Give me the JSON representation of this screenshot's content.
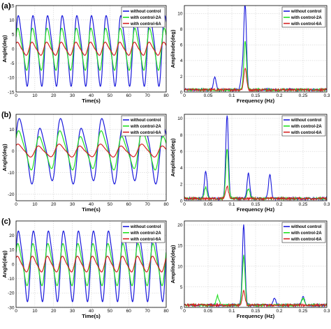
{
  "colors": {
    "without_control": "#1a1adc",
    "with_control_2A": "#22e022",
    "with_control_6A": "#d42020",
    "grid": "#c9c9c9",
    "frame": "#000000"
  },
  "rows": [
    {
      "label": "(a)",
      "time": {
        "type": "line",
        "xlabel": "Time(s)",
        "ylabel": "Angle(deg)",
        "xlim": [
          0,
          80
        ],
        "ylim": [
          -15,
          15
        ],
        "xticks": [
          0,
          10,
          20,
          30,
          40,
          50,
          60,
          70,
          80
        ],
        "yticks": [
          -15,
          -10,
          -5,
          0,
          5,
          10,
          15
        ],
        "grid": true,
        "legend_position": "top-right",
        "series": [
          {
            "name": "without control",
            "color": "#1a1adc",
            "amplitude": 13.5,
            "period_s": 7.8
          },
          {
            "name": "with control-2A",
            "color": "#22e022",
            "amplitude": 8,
            "period_s": 7.8
          },
          {
            "name": "with control-6A",
            "color": "#d42020",
            "amplitude": 2.5,
            "period_s": 7.8
          }
        ]
      },
      "freq": {
        "type": "line",
        "xlabel": "Frequency (Hz)",
        "ylabel": "Amplitude(deg)",
        "xlim": [
          0,
          0.3
        ],
        "ylim": [
          0,
          11
        ],
        "xticks": [
          0,
          0.05,
          0.1,
          0.15,
          0.2,
          0.25,
          0.3
        ],
        "yticks": [
          0,
          2,
          4,
          6,
          8,
          10
        ],
        "grid": true,
        "legend_position": "top-right",
        "series": [
          {
            "name": "without control",
            "color": "#1a1adc",
            "peaks": [
              {
                "f": 0.128,
                "a": 10.8
              },
              {
                "f": 0.064,
                "a": 1.7
              },
              {
                "f": 0.122,
                "a": 2.2
              }
            ]
          },
          {
            "name": "with control-2A",
            "color": "#22e022",
            "peaks": [
              {
                "f": 0.128,
                "a": 6.2
              }
            ]
          },
          {
            "name": "with control-6A",
            "color": "#d42020",
            "peaks": [
              {
                "f": 0.128,
                "a": 2.8
              }
            ]
          }
        ]
      }
    },
    {
      "label": "(b)",
      "time": {
        "type": "line",
        "xlabel": "Time(s)",
        "ylabel": "Angle(deg)",
        "xlim": [
          0,
          80
        ],
        "ylim": [
          -23,
          17
        ],
        "xticks": [
          0,
          10,
          20,
          30,
          40,
          50,
          60,
          70,
          80
        ],
        "yticks": [
          -20,
          -10,
          0,
          10
        ],
        "grid": true,
        "legend_position": "top-right",
        "series": [
          {
            "name": "without control",
            "color": "#1a1adc",
            "amplitude": 15,
            "period_s": 11
          },
          {
            "name": "with control-2A",
            "color": "#22e022",
            "amplitude": 9,
            "period_s": 11
          },
          {
            "name": "with control-6A",
            "color": "#d42020",
            "amplitude": 3,
            "period_s": 11
          }
        ]
      },
      "freq": {
        "type": "line",
        "xlabel": "Frequency (Hz)",
        "ylabel": "Amplitude(deg)",
        "xlim": [
          0,
          0.3
        ],
        "ylim": [
          0,
          10.5
        ],
        "xticks": [
          0,
          0.05,
          0.1,
          0.15,
          0.2,
          0.25,
          0.3
        ],
        "yticks": [
          0,
          2,
          4,
          6,
          8,
          10
        ],
        "grid": true,
        "legend_position": "top-right",
        "series": [
          {
            "name": "without control",
            "color": "#1a1adc",
            "peaks": [
              {
                "f": 0.09,
                "a": 10.2
              },
              {
                "f": 0.045,
                "a": 3.4
              },
              {
                "f": 0.135,
                "a": 3.1
              },
              {
                "f": 0.18,
                "a": 2.9
              }
            ]
          },
          {
            "name": "with control-2A",
            "color": "#22e022",
            "peaks": [
              {
                "f": 0.09,
                "a": 6.0
              },
              {
                "f": 0.045,
                "a": 1.4
              },
              {
                "f": 0.135,
                "a": 1.2
              }
            ]
          },
          {
            "name": "with control-6A",
            "color": "#d42020",
            "peaks": [
              {
                "f": 0.09,
                "a": 1.5
              }
            ]
          }
        ]
      }
    },
    {
      "label": "(c)",
      "time": {
        "type": "line",
        "xlabel": "Time(s)",
        "ylabel": "Angle(deg)",
        "xlim": [
          0,
          80
        ],
        "ylim": [
          -30,
          30
        ],
        "xticks": [
          0,
          10,
          20,
          30,
          40,
          50,
          60,
          70,
          80
        ],
        "yticks": [
          -30,
          -20,
          -10,
          0,
          10,
          20
        ],
        "grid": true,
        "legend_position": "top-right",
        "series": [
          {
            "name": "without control",
            "color": "#1a1adc",
            "amplitude": 27,
            "period_s": 8
          },
          {
            "name": "with control-2A",
            "color": "#22e022",
            "amplitude": 16,
            "period_s": 8
          },
          {
            "name": "with control-6A",
            "color": "#d42020",
            "amplitude": 6,
            "period_s": 8
          }
        ]
      },
      "freq": {
        "type": "line",
        "xlabel": "Frequency (Hz)",
        "ylabel": "Amplitude(deg)",
        "xlim": [
          0,
          0.3
        ],
        "ylim": [
          0,
          21
        ],
        "xticks": [
          0,
          0.05,
          0.1,
          0.15,
          0.2,
          0.25,
          0.3
        ],
        "yticks": [
          0,
          5,
          10,
          15,
          20
        ],
        "grid": true,
        "legend_position": "top-right",
        "series": [
          {
            "name": "without control",
            "color": "#1a1adc",
            "peaks": [
              {
                "f": 0.125,
                "a": 19.5
              },
              {
                "f": 0.25,
                "a": 2.0
              },
              {
                "f": 0.19,
                "a": 1.8
              }
            ]
          },
          {
            "name": "with control-2A",
            "color": "#22e022",
            "peaks": [
              {
                "f": 0.125,
                "a": 12.0
              },
              {
                "f": 0.25,
                "a": 1.6
              },
              {
                "f": 0.07,
                "a": 2.2
              }
            ]
          },
          {
            "name": "with control-6A",
            "color": "#d42020",
            "peaks": [
              {
                "f": 0.125,
                "a": 3.4
              }
            ]
          }
        ]
      }
    }
  ]
}
